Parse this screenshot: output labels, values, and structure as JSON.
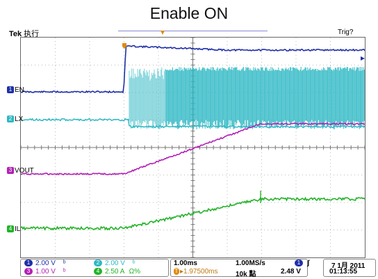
{
  "header": {
    "title": "Enable ON",
    "brand": "Tek",
    "run_state": "执行",
    "trigger_state": "Trig?"
  },
  "channels": [
    {
      "num": "1",
      "label": "EN",
      "color": "#1f2fa8"
    },
    {
      "num": "2",
      "label": "LX",
      "color": "#2fb8c4"
    },
    {
      "num": "3",
      "label": "VOUT",
      "color": "#b21fb5"
    },
    {
      "num": "4",
      "label": "IL",
      "color": "#22b328"
    }
  ],
  "status": {
    "ch1_scale": "2.00 V",
    "ch2_scale": "2.00 V",
    "ch3_scale": "1.00 V",
    "ch4_scale": "2.50 A",
    "ch4_suffix": "Ω%",
    "timebase": "1.00ms",
    "sample_rate": "1.00MS/s",
    "trigger_offset": "▸1.97500ms",
    "record_length": "10k 點",
    "trigger_level": "2.48 V",
    "date": "7 1月  2011",
    "time": "01:13:55"
  }
}
